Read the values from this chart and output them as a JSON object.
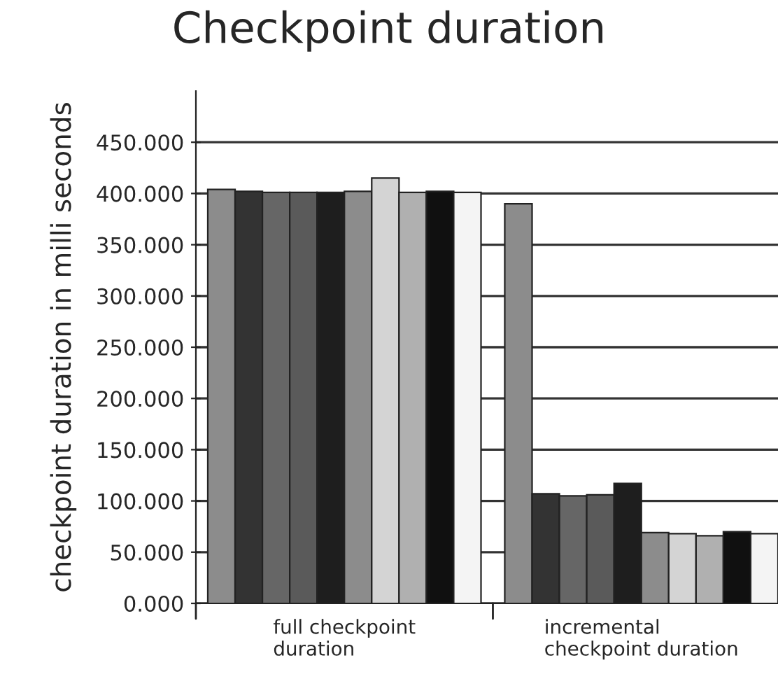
{
  "chart_data": {
    "type": "bar",
    "title": "Checkpoint duration",
    "ylabel": "checkpoint duration in milli seconds",
    "categories": [
      "full checkpoint\nduration",
      "incremental\ncheckpoint duration"
    ],
    "series": [
      {
        "color": "#8c8c8c",
        "values": [
          404,
          390
        ]
      },
      {
        "color": "#333333",
        "values": [
          402,
          107
        ]
      },
      {
        "color": "#666666",
        "values": [
          401,
          105
        ]
      },
      {
        "color": "#5a5a5a",
        "values": [
          401,
          106
        ]
      },
      {
        "color": "#1e1e1e",
        "values": [
          401,
          117
        ]
      },
      {
        "color": "#8c8c8c",
        "values": [
          402,
          69
        ]
      },
      {
        "color": "#d4d4d4",
        "values": [
          415,
          68
        ]
      },
      {
        "color": "#b0b0b0",
        "values": [
          401,
          66
        ]
      },
      {
        "color": "#101010",
        "values": [
          402,
          70
        ]
      },
      {
        "color": "#f4f4f4",
        "values": [
          401,
          68
        ]
      }
    ],
    "ylim": [
      0,
      500
    ],
    "yticks": [
      {
        "value": 0,
        "label": "0.000"
      },
      {
        "value": 50,
        "label": "50.000"
      },
      {
        "value": 100,
        "label": "100.000"
      },
      {
        "value": 150,
        "label": "150.000"
      },
      {
        "value": 200,
        "label": "200.000"
      },
      {
        "value": 250,
        "label": "250.000"
      },
      {
        "value": 300,
        "label": "300.000"
      },
      {
        "value": 350,
        "label": "350.000"
      },
      {
        "value": 400,
        "label": "400.000"
      },
      {
        "value": 450,
        "label": "450.000"
      }
    ],
    "grid": "y",
    "legend": false
  }
}
